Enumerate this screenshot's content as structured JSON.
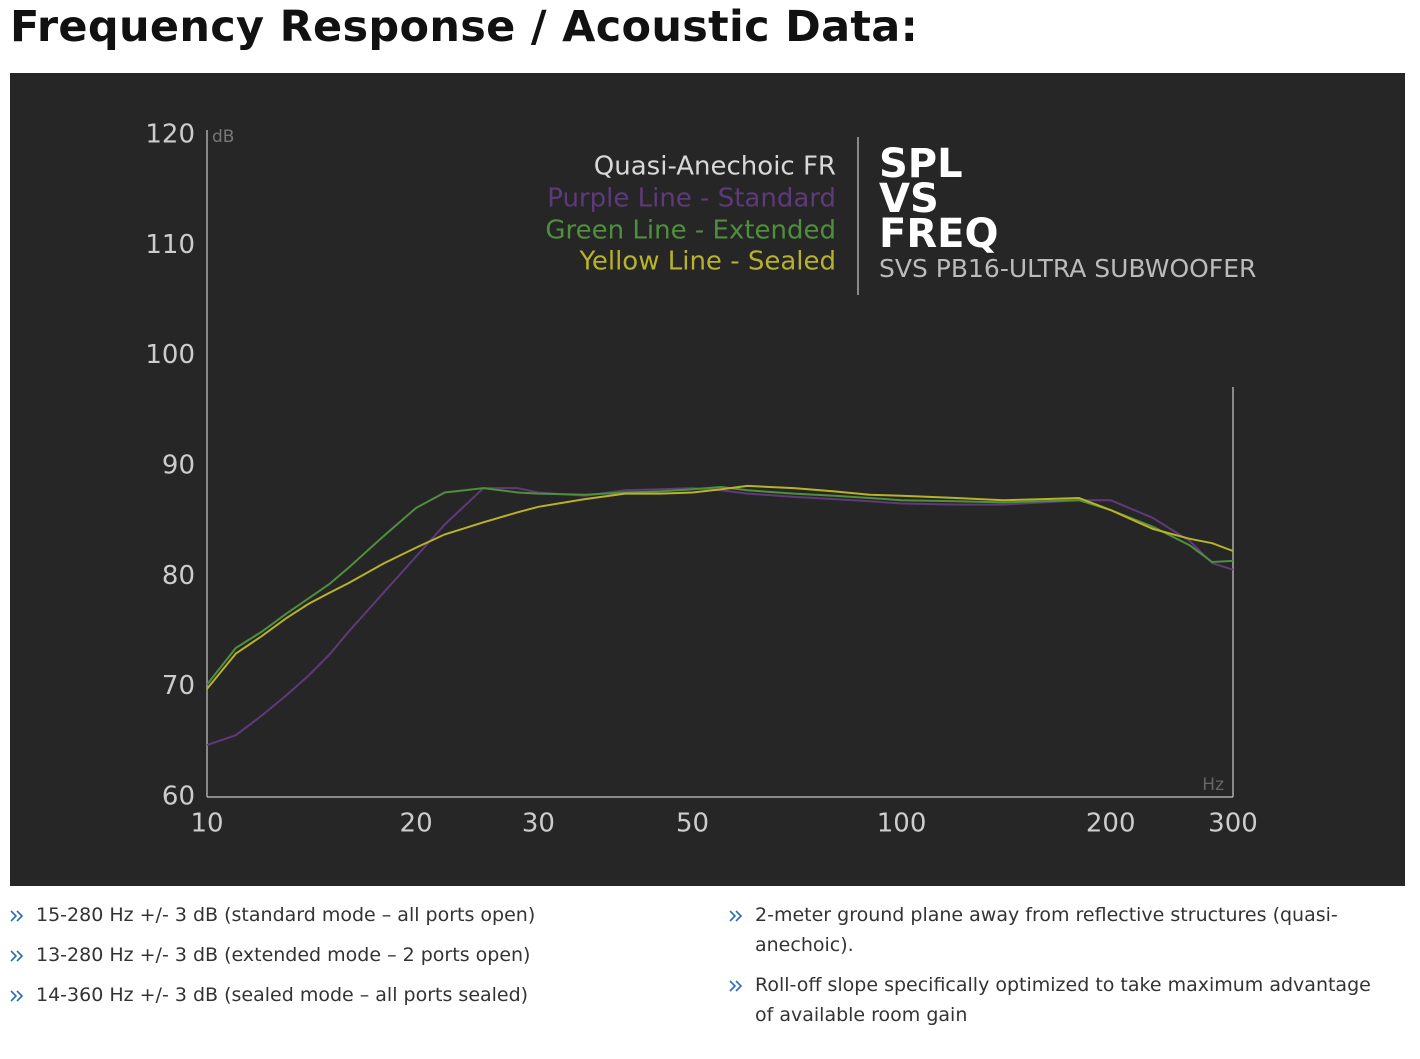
{
  "header": {
    "title": "Frequency Response / Acoustic Data:"
  },
  "chart_data": {
    "type": "line",
    "title_lines": [
      "SPL",
      "VS",
      "FREQ"
    ],
    "subtitle": "SVS PB16-ULTRA SUBWOOFER",
    "legend_title": "Quasi-Anechoic FR",
    "y_unit": "dB",
    "x_unit": "Hz",
    "xscale": "log",
    "grid": false,
    "xlim": [
      10,
      300
    ],
    "xticks": [
      10,
      20,
      30,
      50,
      100,
      200,
      300
    ],
    "ylim": [
      60,
      120
    ],
    "yticks": [
      60,
      70,
      80,
      90,
      100,
      110,
      120
    ],
    "x": [
      10,
      11,
      12,
      13,
      14,
      15,
      16,
      18,
      20,
      22,
      25,
      28,
      30,
      35,
      40,
      45,
      50,
      55,
      60,
      70,
      80,
      90,
      100,
      120,
      140,
      160,
      180,
      200,
      230,
      260,
      280,
      300
    ],
    "series": [
      {
        "name": "Purple Line - Standard",
        "color": "#5e3a7a",
        "values": [
          64.7,
          65.6,
          67.4,
          69.2,
          71,
          72.9,
          75,
          78.6,
          81.8,
          84.7,
          88,
          88,
          87.6,
          87.3,
          87.8,
          87.9,
          88,
          87.8,
          87.5,
          87.2,
          87,
          86.8,
          86.6,
          86.5,
          86.5,
          86.7,
          86.9,
          86.9,
          85.3,
          83.2,
          81.2,
          80.6
        ]
      },
      {
        "name": "Green Line - Extended",
        "color": "#4f8f3c",
        "values": [
          70.2,
          73.5,
          75,
          76.6,
          78,
          79.3,
          80.8,
          83.7,
          86.2,
          87.6,
          88,
          87.6,
          87.5,
          87.4,
          87.6,
          87.7,
          87.9,
          88.1,
          87.8,
          87.5,
          87.3,
          87.1,
          86.9,
          86.8,
          86.7,
          86.8,
          86.9,
          86,
          84.5,
          82.8,
          81.3,
          81.4
        ]
      },
      {
        "name": "Yellow Line - Sealed",
        "color": "#b8b22a",
        "values": [
          69.8,
          73,
          74.6,
          76.2,
          77.5,
          78.5,
          79.4,
          81.2,
          82.6,
          83.8,
          84.9,
          85.8,
          86.3,
          87,
          87.5,
          87.5,
          87.6,
          87.9,
          88.2,
          88,
          87.7,
          87.4,
          87.3,
          87.1,
          86.9,
          87,
          87.1,
          86,
          84.3,
          83.4,
          83,
          82.3
        ]
      }
    ]
  },
  "notes": {
    "left": [
      "15-280 Hz +/- 3 dB (standard mode – all ports open)",
      "13-280 Hz +/- 3 dB (extended mode – 2 ports open)",
      "14-360 Hz +/- 3 dB (sealed mode – all ports sealed)"
    ],
    "right": [
      "2-meter ground plane away from reflective structures (quasi-anechoic).",
      "Roll-off slope specifically optimized to take maximum advantage of available room gain"
    ]
  }
}
